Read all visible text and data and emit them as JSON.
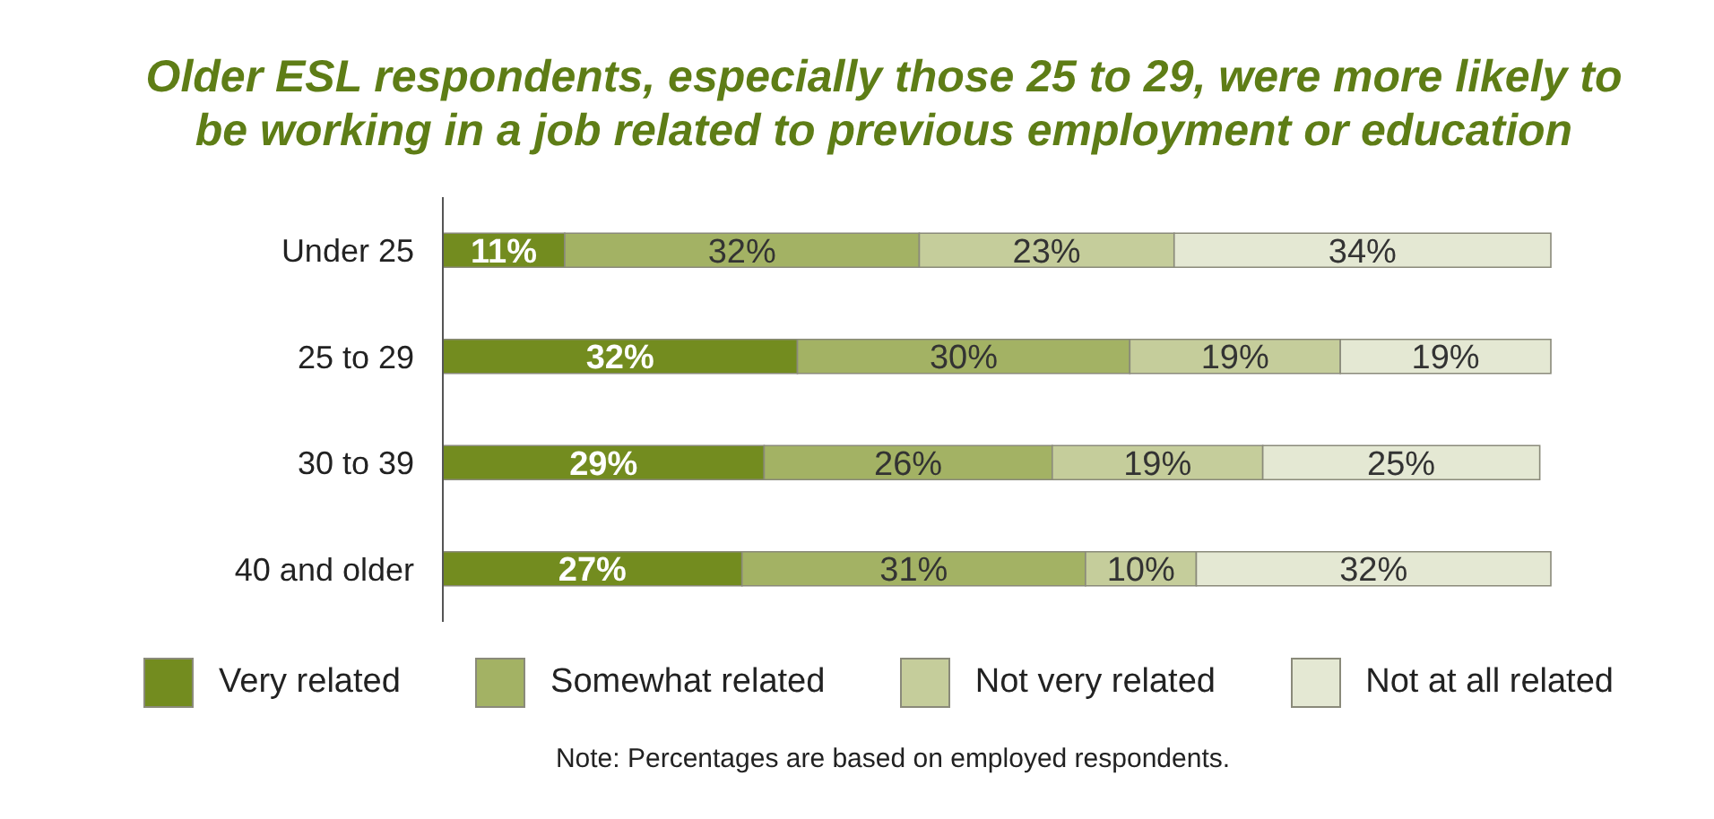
{
  "chart_data": {
    "type": "bar",
    "orientation": "horizontal",
    "stacked": true,
    "relative": false,
    "title": "Older ESL respondents, especially those 25 to 29, were more likely to be working in a job related to previous employment or education",
    "categories": [
      "Under 25",
      "25 to 29",
      "30 to 39",
      "40 and older"
    ],
    "series": [
      {
        "name": "Very related",
        "color": "#738c1f",
        "values": [
          11,
          32,
          29,
          27
        ],
        "value_labels": [
          "11%",
          "32%",
          "29%",
          "27%"
        ]
      },
      {
        "name": "Somewhat related",
        "color": "#a3b264",
        "values": [
          32,
          30,
          26,
          31
        ],
        "value_labels": [
          "32%",
          "30%",
          "26%",
          "31%"
        ]
      },
      {
        "name": "Not very related",
        "color": "#c5cd9b",
        "values": [
          23,
          19,
          19,
          10
        ],
        "value_labels": [
          "23%",
          "19%",
          "19%",
          "10%"
        ]
      },
      {
        "name": "Not at all related",
        "color": "#e4e8d3",
        "values": [
          34,
          19,
          25,
          32
        ],
        "value_labels": [
          "34%",
          "19%",
          "25%",
          "32%"
        ]
      }
    ],
    "legend": "bottom",
    "grid": false,
    "annotations": [
      "Note: Percentages are based on employed respondents."
    ]
  }
}
